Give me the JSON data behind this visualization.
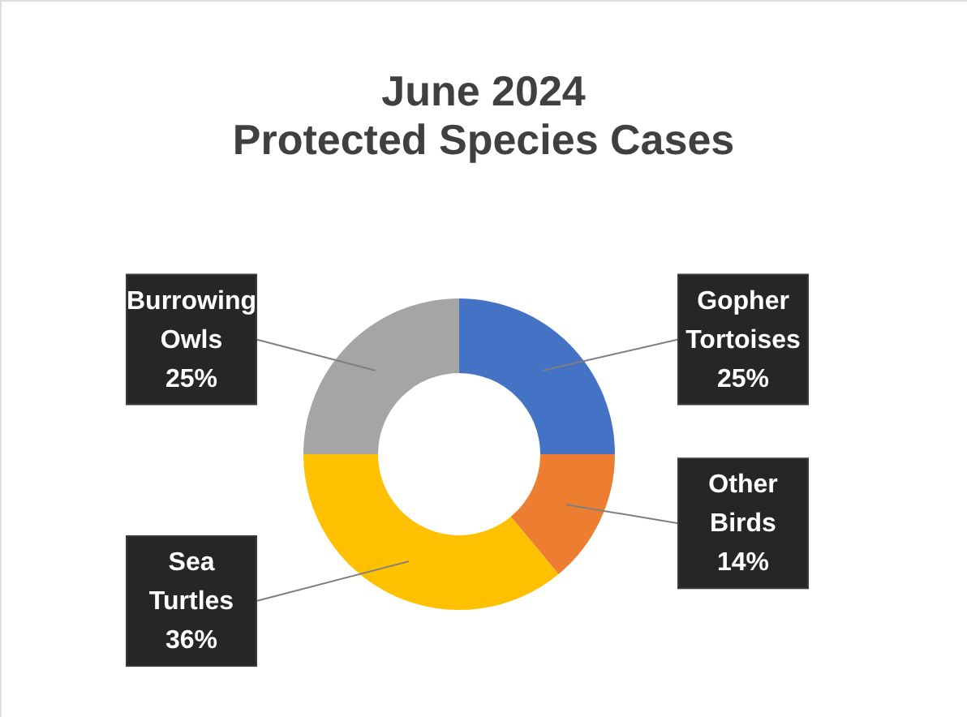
{
  "chart_data": {
    "type": "donut",
    "title": "June 2024",
    "subtitle": "Protected Species Cases",
    "categories": [
      "Gopher Tortoises",
      "Other Birds",
      "Sea Turtles",
      "Burrowing Owls"
    ],
    "values": [
      25,
      14,
      36,
      25
    ],
    "colors": [
      "#4472c4",
      "#ed7d31",
      "#ffc000",
      "#a5a5a5"
    ],
    "value_labels": [
      "25%",
      "14%",
      "36%",
      "25%"
    ],
    "legend": false
  }
}
